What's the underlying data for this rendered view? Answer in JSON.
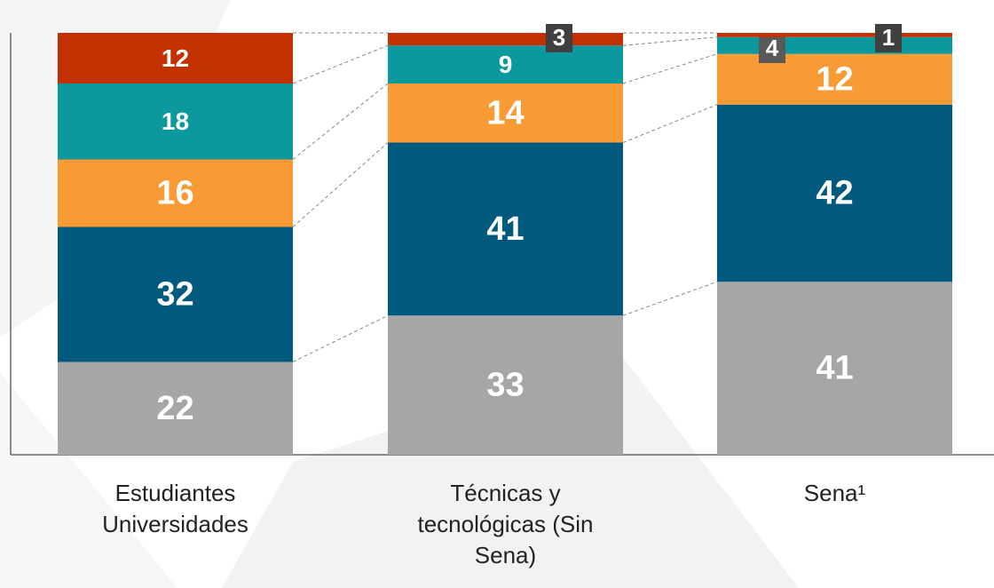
{
  "chart_data": {
    "type": "stacked_bar",
    "categories": [
      "Estudiantes Universidades",
      "Técnicas y tecnológicas (Sin Sena)",
      "Sena¹"
    ],
    "series": [
      {
        "color": "#a6a6a6",
        "values": [
          22,
          33,
          41
        ]
      },
      {
        "color": "#02597e",
        "values": [
          32,
          41,
          42
        ]
      },
      {
        "color": "#f99b35",
        "values": [
          16,
          14,
          12
        ]
      },
      {
        "color": "#0b999d",
        "values": [
          18,
          9,
          4
        ]
      },
      {
        "color": "#c33100",
        "values": [
          12,
          3,
          1
        ]
      }
    ],
    "ylim": [
      0,
      100
    ]
  }
}
